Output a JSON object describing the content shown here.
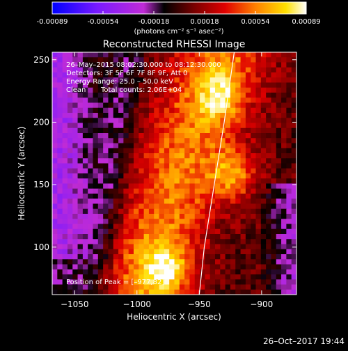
{
  "chart_data": {
    "type": "heatmap",
    "title": "Reconstructed RHESSI Image",
    "xlabel": "Heliocentric X (arcsec)",
    "ylabel": "Heliocentric Y (arcsec)",
    "xlim": [
      -1068,
      -872
    ],
    "ylim": [
      62,
      256
    ],
    "x_ticks": [
      -1050,
      -1000,
      -950,
      -900
    ],
    "y_ticks": [
      100,
      150,
      200,
      250
    ],
    "colorbar": {
      "min": -0.00089,
      "max": 0.00089,
      "ticks": [
        "-0.00089",
        "-0.00054",
        "-0.00018",
        "0.00018",
        "0.00054",
        "0.00089"
      ],
      "unit_label": "(photons cm⁻² s⁻¹ asec⁻²)",
      "colormap": [
        "#0000ff",
        "#7a1aff",
        "#c02bd6",
        "#000000",
        "#7a0000",
        "#e00000",
        "#ff8000",
        "#ffe000",
        "#ffffff"
      ]
    },
    "annotations": {
      "time": "26–May–2015 08:02:30.000 to 08:12:30.000",
      "detectors": "Detectors: 3F 5F 6F 7F 8F 9F, Att 0",
      "energy": "Energy Range: 25.0 – 50.0 keV",
      "clean": "Clean",
      "counts": "Total counts: 2.06E+04",
      "peak": "Position of Peak = [–977,82]"
    },
    "peaks": [
      {
        "x": -977,
        "y": 82,
        "value": 1.0
      },
      {
        "x": -923,
        "y": 158,
        "value": 0.92
      },
      {
        "x": -933,
        "y": 222,
        "value": 0.8
      }
    ],
    "limb_arc_x_at_y": [
      [
        62,
        -950
      ],
      [
        100,
        -946
      ],
      [
        150,
        -938
      ],
      [
        200,
        -930
      ],
      [
        256,
        -922
      ]
    ]
  },
  "footer": {
    "timestamp": "26–Oct–2017 19:44"
  }
}
